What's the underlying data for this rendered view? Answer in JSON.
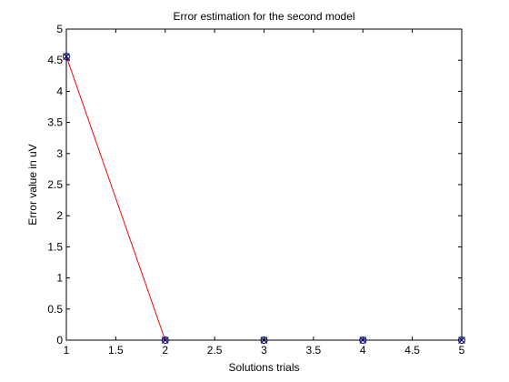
{
  "chart_data": {
    "type": "line",
    "title": "Error estimation for the second model",
    "xlabel": "Solutions trials",
    "ylabel": "Error value in uV",
    "xlim": [
      1,
      5
    ],
    "ylim": [
      0,
      5
    ],
    "xticks": [
      "1",
      "1.5",
      "2",
      "2.5",
      "3",
      "3.5",
      "4",
      "4.5",
      "5"
    ],
    "yticks": [
      "0",
      "0.5",
      "1",
      "1.5",
      "2",
      "2.5",
      "3",
      "3.5",
      "4",
      "4.5",
      "5"
    ],
    "grid": false,
    "series": [
      {
        "x": [
          1,
          2,
          3,
          4,
          5
        ],
        "y": [
          4.56,
          0.0,
          0.0,
          0.0,
          0.0
        ],
        "line_color": "#ff0000",
        "marker": "circle-x",
        "marker_color": "#00007f"
      }
    ]
  }
}
